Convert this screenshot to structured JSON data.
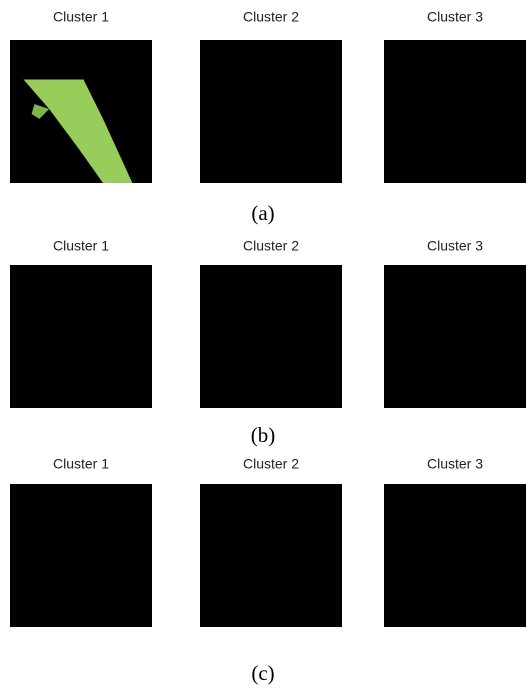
{
  "figure": {
    "rows": [
      {
        "panels": [
          {
            "title": "Cluster 1"
          },
          {
            "title": "Cluster 2"
          },
          {
            "title": "Cluster 3"
          }
        ],
        "caption": "(a)"
      },
      {
        "panels": [
          {
            "title": "Cluster 1"
          },
          {
            "title": "Cluster 2"
          },
          {
            "title": "Cluster 3"
          }
        ],
        "caption": "(b)"
      },
      {
        "panels": [
          {
            "title": "Cluster 1"
          },
          {
            "title": "Cluster 2"
          },
          {
            "title": "Cluster 3"
          }
        ],
        "caption": "(c)"
      }
    ]
  }
}
